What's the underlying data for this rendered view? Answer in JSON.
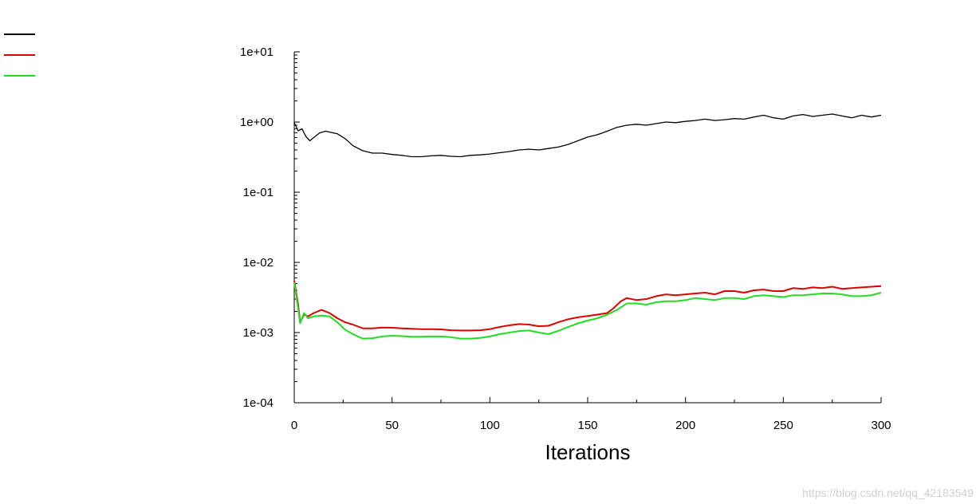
{
  "chart_data": {
    "type": "line",
    "xlabel": "Iterations",
    "ylabel": "",
    "xlim": [
      0,
      300
    ],
    "ylim": [
      0.0001,
      10
    ],
    "yscale": "log",
    "x_ticks": [
      "0",
      "50",
      "100",
      "150",
      "200",
      "250",
      "300"
    ],
    "y_ticks": [
      "1e+01",
      "1e+00",
      "1e-01",
      "1e-02",
      "1e-03",
      "1e-04"
    ],
    "grid": false,
    "legend": "top-left",
    "series": [
      {
        "name": "",
        "color": "#000000",
        "points": [
          [
            0,
            0.98
          ],
          [
            2,
            0.75
          ],
          [
            4,
            0.8
          ],
          [
            6,
            0.62
          ],
          [
            8,
            0.54
          ],
          [
            10,
            0.6
          ],
          [
            13,
            0.7
          ],
          [
            16,
            0.74
          ],
          [
            19,
            0.71
          ],
          [
            22,
            0.68
          ],
          [
            26,
            0.58
          ],
          [
            30,
            0.46
          ],
          [
            35,
            0.39
          ],
          [
            40,
            0.36
          ],
          [
            45,
            0.36
          ],
          [
            50,
            0.345
          ],
          [
            55,
            0.335
          ],
          [
            60,
            0.32
          ],
          [
            65,
            0.32
          ],
          [
            70,
            0.33
          ],
          [
            75,
            0.335
          ],
          [
            80,
            0.325
          ],
          [
            85,
            0.32
          ],
          [
            90,
            0.335
          ],
          [
            95,
            0.34
          ],
          [
            100,
            0.35
          ],
          [
            105,
            0.365
          ],
          [
            110,
            0.38
          ],
          [
            115,
            0.4
          ],
          [
            120,
            0.41
          ],
          [
            125,
            0.4
          ],
          [
            130,
            0.42
          ],
          [
            135,
            0.44
          ],
          [
            140,
            0.48
          ],
          [
            145,
            0.54
          ],
          [
            150,
            0.61
          ],
          [
            155,
            0.66
          ],
          [
            160,
            0.74
          ],
          [
            165,
            0.84
          ],
          [
            170,
            0.9
          ],
          [
            175,
            0.93
          ],
          [
            180,
            0.9
          ],
          [
            185,
            0.95
          ],
          [
            190,
            1.0
          ],
          [
            195,
            0.98
          ],
          [
            200,
            1.02
          ],
          [
            205,
            1.05
          ],
          [
            210,
            1.1
          ],
          [
            215,
            1.05
          ],
          [
            220,
            1.08
          ],
          [
            225,
            1.12
          ],
          [
            230,
            1.1
          ],
          [
            235,
            1.18
          ],
          [
            240,
            1.25
          ],
          [
            245,
            1.15
          ],
          [
            250,
            1.1
          ],
          [
            255,
            1.22
          ],
          [
            260,
            1.28
          ],
          [
            265,
            1.2
          ],
          [
            270,
            1.25
          ],
          [
            275,
            1.3
          ],
          [
            280,
            1.22
          ],
          [
            285,
            1.15
          ],
          [
            290,
            1.25
          ],
          [
            295,
            1.18
          ],
          [
            300,
            1.25
          ]
        ]
      },
      {
        "name": "",
        "color": "#e00000",
        "points": [
          [
            0,
            0.0055
          ],
          [
            2,
            0.0025
          ],
          [
            3,
            0.0014
          ],
          [
            5,
            0.0018
          ],
          [
            7,
            0.0017
          ],
          [
            10,
            0.0019
          ],
          [
            14,
            0.0021
          ],
          [
            18,
            0.0019
          ],
          [
            22,
            0.0016
          ],
          [
            26,
            0.0014
          ],
          [
            30,
            0.0013
          ],
          [
            35,
            0.00115
          ],
          [
            40,
            0.00115
          ],
          [
            45,
            0.00118
          ],
          [
            50,
            0.00117
          ],
          [
            55,
            0.00115
          ],
          [
            60,
            0.00113
          ],
          [
            65,
            0.00112
          ],
          [
            70,
            0.00112
          ],
          [
            75,
            0.00111
          ],
          [
            80,
            0.00108
          ],
          [
            85,
            0.00107
          ],
          [
            90,
            0.00107
          ],
          [
            95,
            0.00108
          ],
          [
            100,
            0.00112
          ],
          [
            105,
            0.0012
          ],
          [
            110,
            0.00127
          ],
          [
            115,
            0.00132
          ],
          [
            120,
            0.0013
          ],
          [
            125,
            0.00123
          ],
          [
            130,
            0.00125
          ],
          [
            135,
            0.0014
          ],
          [
            140,
            0.00155
          ],
          [
            145,
            0.00165
          ],
          [
            150,
            0.00172
          ],
          [
            155,
            0.0018
          ],
          [
            160,
            0.0019
          ],
          [
            163,
            0.0022
          ],
          [
            167,
            0.0028
          ],
          [
            170,
            0.0031
          ],
          [
            175,
            0.0029
          ],
          [
            180,
            0.003
          ],
          [
            185,
            0.0033
          ],
          [
            190,
            0.0035
          ],
          [
            195,
            0.0034
          ],
          [
            200,
            0.0035
          ],
          [
            205,
            0.0036
          ],
          [
            210,
            0.0037
          ],
          [
            215,
            0.0035
          ],
          [
            220,
            0.0039
          ],
          [
            225,
            0.0039
          ],
          [
            230,
            0.0037
          ],
          [
            235,
            0.004
          ],
          [
            240,
            0.0041
          ],
          [
            245,
            0.0039
          ],
          [
            250,
            0.0039
          ],
          [
            255,
            0.0043
          ],
          [
            260,
            0.0042
          ],
          [
            265,
            0.0044
          ],
          [
            270,
            0.0043
          ],
          [
            275,
            0.0045
          ],
          [
            280,
            0.0042
          ],
          [
            285,
            0.0043
          ],
          [
            290,
            0.0044
          ],
          [
            295,
            0.0045
          ],
          [
            300,
            0.0046
          ]
        ]
      },
      {
        "name": "",
        "color": "#22dd22",
        "points": [
          [
            0,
            0.0052
          ],
          [
            2,
            0.0022
          ],
          [
            3,
            0.00135
          ],
          [
            5,
            0.0019
          ],
          [
            7,
            0.0016
          ],
          [
            10,
            0.0017
          ],
          [
            14,
            0.00175
          ],
          [
            18,
            0.0017
          ],
          [
            22,
            0.0014
          ],
          [
            26,
            0.0011
          ],
          [
            30,
            0.00095
          ],
          [
            35,
            0.00082
          ],
          [
            40,
            0.00083
          ],
          [
            45,
            0.00088
          ],
          [
            50,
            0.0009
          ],
          [
            55,
            0.00089
          ],
          [
            60,
            0.00087
          ],
          [
            65,
            0.00087
          ],
          [
            70,
            0.00088
          ],
          [
            75,
            0.00088
          ],
          [
            80,
            0.00086
          ],
          [
            85,
            0.00082
          ],
          [
            90,
            0.00082
          ],
          [
            95,
            0.00084
          ],
          [
            100,
            0.00088
          ],
          [
            105,
            0.00095
          ],
          [
            110,
            0.001
          ],
          [
            115,
            0.00105
          ],
          [
            120,
            0.00107
          ],
          [
            125,
            0.001
          ],
          [
            130,
            0.00095
          ],
          [
            135,
            0.00106
          ],
          [
            140,
            0.0012
          ],
          [
            145,
            0.00135
          ],
          [
            150,
            0.00148
          ],
          [
            155,
            0.0016
          ],
          [
            160,
            0.0018
          ],
          [
            165,
            0.0021
          ],
          [
            170,
            0.0026
          ],
          [
            175,
            0.0026
          ],
          [
            180,
            0.0025
          ],
          [
            185,
            0.0027
          ],
          [
            190,
            0.0028
          ],
          [
            195,
            0.0028
          ],
          [
            200,
            0.0029
          ],
          [
            205,
            0.0031
          ],
          [
            210,
            0.003
          ],
          [
            215,
            0.0029
          ],
          [
            220,
            0.0031
          ],
          [
            225,
            0.0031
          ],
          [
            230,
            0.003
          ],
          [
            235,
            0.0033
          ],
          [
            240,
            0.0034
          ],
          [
            245,
            0.0033
          ],
          [
            250,
            0.0032
          ],
          [
            255,
            0.0034
          ],
          [
            260,
            0.0034
          ],
          [
            265,
            0.0035
          ],
          [
            270,
            0.0036
          ],
          [
            275,
            0.0036
          ],
          [
            280,
            0.0035
          ],
          [
            285,
            0.0033
          ],
          [
            290,
            0.0033
          ],
          [
            295,
            0.0034
          ],
          [
            300,
            0.0037
          ]
        ]
      }
    ]
  },
  "watermark": "https://blog.csdn.net/qq_42183549"
}
